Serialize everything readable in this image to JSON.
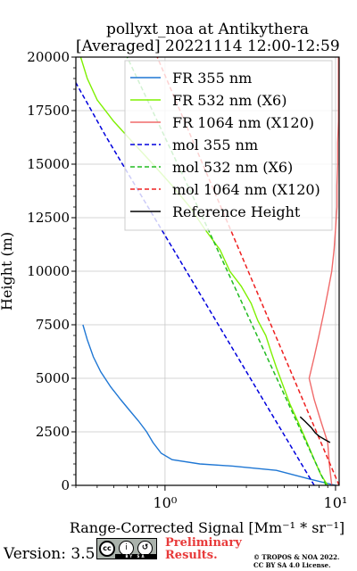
{
  "chart_data": {
    "type": "line",
    "title": "pollyxt_noa at Antikythera",
    "subtitle": "[Averaged] 20221114 12:00-12:59",
    "xlabel": "Range-Corrected Signal [Mm⁻¹ * sr⁻¹]",
    "ylabel": "Height (m)",
    "xscale": "log",
    "xlim": [
      0.3,
      10.5
    ],
    "ylim": [
      0,
      20000
    ],
    "grid": true,
    "legend_position": "top-right",
    "x_tick_labels": [
      "10⁰",
      "10¹"
    ],
    "y_tick_labels": [
      "0",
      "2500",
      "5000",
      "7500",
      "10000",
      "12500",
      "15000",
      "17500",
      "20000"
    ],
    "y_ticks": [
      0,
      2500,
      5000,
      7500,
      10000,
      12500,
      15000,
      17500,
      20000
    ],
    "x_ticks_major": [
      1,
      10
    ],
    "series": [
      {
        "name": "FR 355 nm",
        "color": "#1f77d4",
        "style": "solid",
        "points": [
          [
            10,
            0
          ],
          [
            7,
            300
          ],
          [
            4.5,
            700
          ],
          [
            2.5,
            900
          ],
          [
            1.6,
            1000
          ],
          [
            1.1,
            1200
          ],
          [
            0.95,
            1500
          ],
          [
            0.85,
            2000
          ],
          [
            0.78,
            2500
          ],
          [
            0.7,
            3000
          ],
          [
            0.62,
            3500
          ],
          [
            0.55,
            4000
          ],
          [
            0.48,
            4600
          ],
          [
            0.42,
            5300
          ],
          [
            0.38,
            6000
          ],
          [
            0.35,
            6800
          ],
          [
            0.33,
            7500
          ]
        ]
      },
      {
        "name": "FR 532 nm (X6)",
        "color": "#7ef000",
        "style": "solid",
        "points": [
          [
            9,
            0
          ],
          [
            8.2,
            500
          ],
          [
            7.5,
            1200
          ],
          [
            6.8,
            2000
          ],
          [
            6,
            3000
          ],
          [
            5.4,
            3800
          ],
          [
            4.9,
            4700
          ],
          [
            4.5,
            5500
          ],
          [
            4.2,
            6200
          ],
          [
            3.9,
            7000
          ],
          [
            3.5,
            7700
          ],
          [
            3.2,
            8500
          ],
          [
            2.8,
            9300
          ],
          [
            2.4,
            10000
          ],
          [
            2.1,
            11000
          ],
          [
            1.7,
            12000
          ],
          [
            1.4,
            13000
          ],
          [
            1.1,
            14000
          ],
          [
            0.85,
            15000
          ],
          [
            0.65,
            16000
          ],
          [
            0.5,
            17000
          ],
          [
            0.4,
            18000
          ],
          [
            0.35,
            19000
          ],
          [
            0.32,
            20000
          ]
        ]
      },
      {
        "name": "FR 1064 nm (X120)",
        "color": "#f06a6a",
        "style": "solid",
        "points": [
          [
            9.5,
            0
          ],
          [
            9.2,
            1000
          ],
          [
            9,
            2000
          ],
          [
            8.2,
            3000
          ],
          [
            7.5,
            4000
          ],
          [
            7,
            5000
          ],
          [
            7.5,
            6000
          ],
          [
            8,
            7000
          ],
          [
            8.5,
            8000
          ],
          [
            9,
            9000
          ],
          [
            9.5,
            10000
          ],
          [
            9.8,
            11000
          ],
          [
            10,
            12000
          ],
          [
            10.2,
            13000
          ],
          [
            10.2,
            14000
          ],
          [
            10.3,
            15000
          ],
          [
            10.3,
            16000
          ],
          [
            10.4,
            17000
          ],
          [
            10.4,
            18000
          ],
          [
            10.4,
            19000
          ],
          [
            10.4,
            20000
          ]
        ]
      },
      {
        "name": "mol 355 nm",
        "color": "#0000dd",
        "style": "dashed",
        "points": [
          [
            7.5,
            0
          ],
          [
            0.45,
            16300
          ],
          [
            0.3,
            18800
          ]
        ]
      },
      {
        "name": "mol 532 nm (X6)",
        "color": "#22bb22",
        "style": "dashed",
        "points": [
          [
            8.8,
            0
          ],
          [
            1.6,
            12800
          ],
          [
            0.6,
            20000
          ]
        ]
      },
      {
        "name": "mol 1064 nm (X120)",
        "color": "#ee2020",
        "style": "dashed",
        "points": [
          [
            10.5,
            0
          ],
          [
            0.9,
            20000
          ]
        ]
      },
      {
        "name": "Reference Height",
        "color": "#000000",
        "style": "solid",
        "points": [
          [
            6.2,
            3200
          ],
          [
            6.6,
            3000
          ],
          [
            7.2,
            2700
          ],
          [
            7.6,
            2450
          ],
          [
            8.0,
            2300
          ],
          [
            8.6,
            2150
          ],
          [
            9.3,
            2000
          ]
        ]
      }
    ]
  },
  "footer": {
    "version": "Version: 3.5",
    "license_badge_text": "BY SA",
    "preliminary": "Preliminary Results.",
    "copyright": "© TROPOS & NOA 2022. CC BY SA 4.0 License."
  },
  "colors": {
    "fr355": "#1f77d4",
    "fr532": "#7ef000",
    "fr1064": "#f06a6a",
    "mol355": "#0000dd",
    "mol532": "#22bb22",
    "mol1064": "#ee2020",
    "preliminary": "#e83a3a"
  }
}
